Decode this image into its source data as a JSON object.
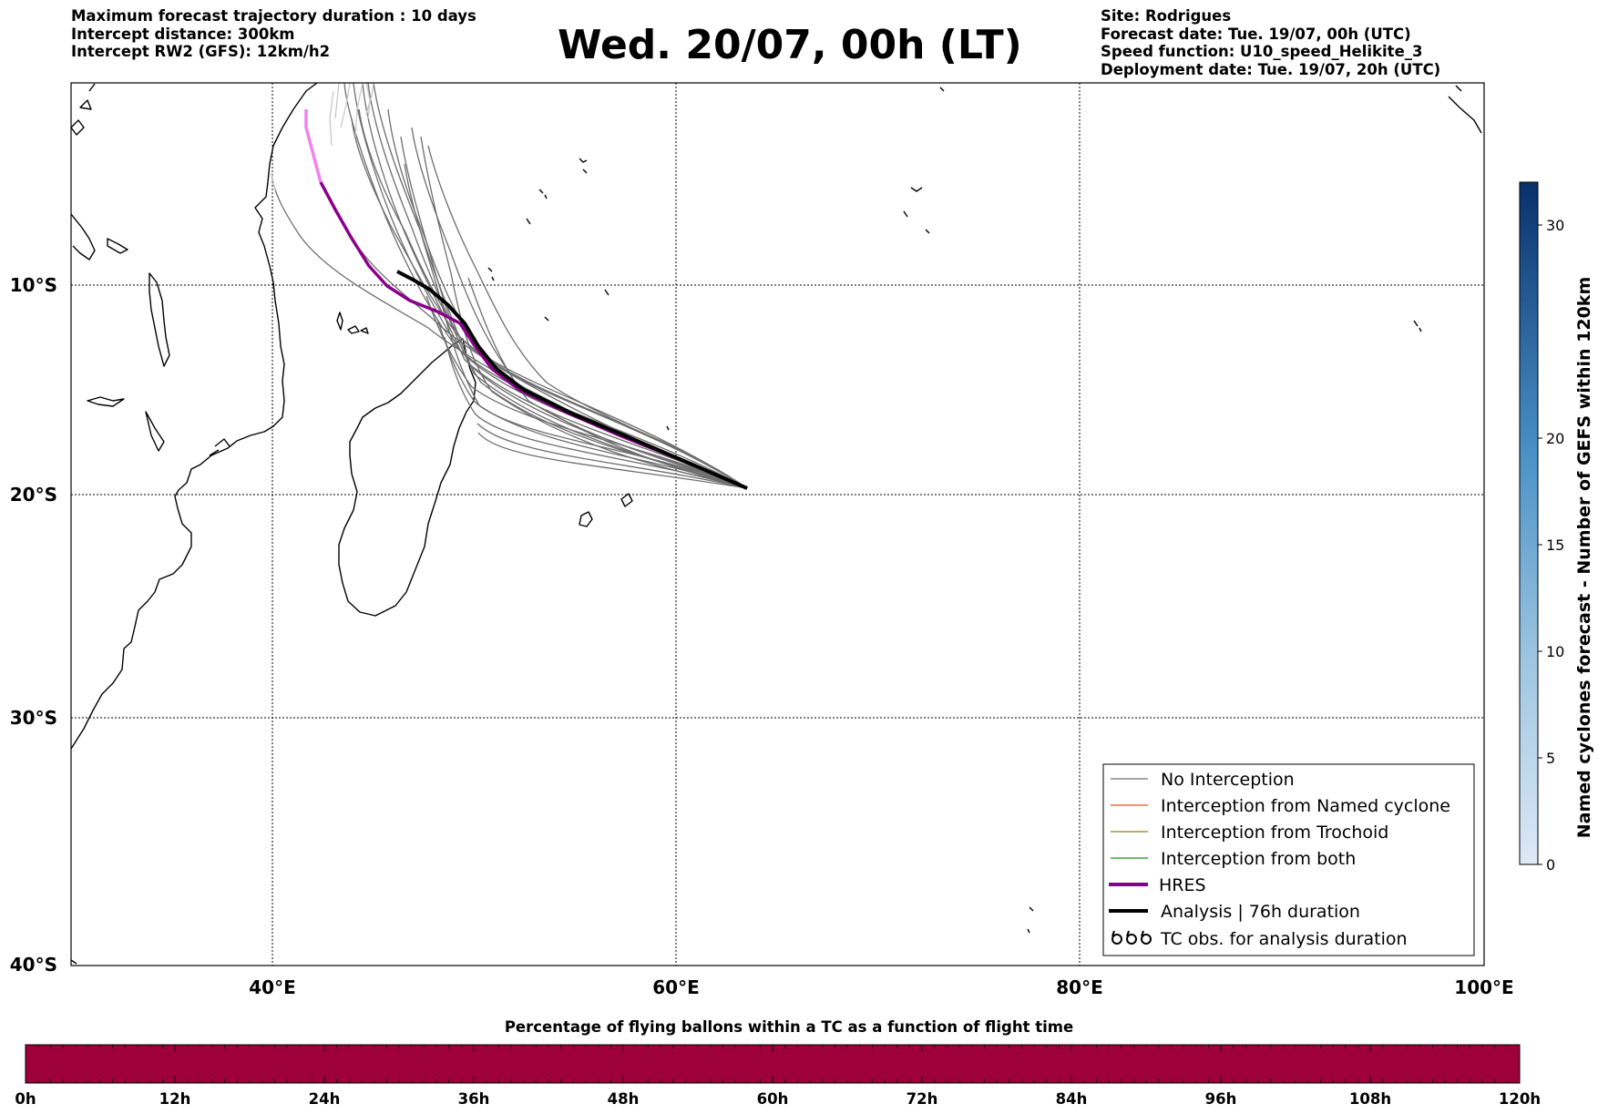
{
  "header_left": [
    "Maximum forecast trajectory duration : 10 days",
    "Intercept distance: 300km",
    "Intercept RW2 (GFS):  12km/h2"
  ],
  "title": "Wed. 20/07, 00h (LT)",
  "header_right": [
    "Site: Rodrigues",
    "Forecast date: Tue. 19/07, 00h (UTC)",
    "Speed function: U10_speed_Helikite_3",
    "Deployment date: Tue. 19/07, 20h (UTC)"
  ],
  "map": {
    "x_ticks": [
      "40°E",
      "60°E",
      "80°E",
      "100°E"
    ],
    "y_ticks": [
      "10°S",
      "20°S",
      "30°S",
      "40°S"
    ],
    "lon_range": [
      30,
      100
    ],
    "lat_range": [
      0,
      -40
    ]
  },
  "colorbar": {
    "label": "Named cyclones forecast - Number of GEFS within 120km",
    "ticks": [
      "0",
      "5",
      "10",
      "15",
      "20",
      "30"
    ],
    "range": [
      0,
      32
    ]
  },
  "legend": {
    "items": [
      {
        "label": "No Interception",
        "color": "#6e6e6e",
        "style": "thin"
      },
      {
        "label": "Interception from Named cyclone",
        "color": "#e8501a",
        "style": "thin"
      },
      {
        "label": "Interception from Trochoid",
        "color": "#8b7d16",
        "style": "thin"
      },
      {
        "label": "Interception from both",
        "color": "#169416",
        "style": "thin"
      },
      {
        "label": "HRES",
        "color": "#8b008b",
        "style": "thick"
      },
      {
        "label": "Analysis | 76h duration",
        "color": "#000000",
        "style": "thick"
      },
      {
        "label": "TC obs. for analysis duration",
        "color": "#000000",
        "style": "symbol"
      }
    ]
  },
  "flight_bar": {
    "title": "Percentage of flying ballons within a TC as a function of flight time",
    "ticks": [
      "0h",
      "12h",
      "24h",
      "36h",
      "48h",
      "60h",
      "72h",
      "84h",
      "96h",
      "108h",
      "120h"
    ],
    "color": "#9e003a"
  },
  "chart_data": {
    "type": "map-trajectories",
    "site": "Rodrigues",
    "start_point": {
      "lon": 63.4,
      "lat": -19.7
    },
    "hres": [
      [
        63.4,
        -19.7
      ],
      [
        56,
        -17
      ],
      [
        52,
        -14.5
      ],
      [
        49.5,
        -12
      ],
      [
        46,
        -10
      ],
      [
        44.5,
        -9
      ],
      [
        42.5,
        -5
      ],
      [
        41.7,
        -1.5
      ]
    ],
    "analysis": [
      [
        63.4,
        -19.7
      ],
      [
        56,
        -16.8
      ],
      [
        51.5,
        -14
      ],
      [
        49,
        -11.5
      ],
      [
        47.3,
        -10.2
      ],
      [
        46.2,
        -9.4
      ]
    ],
    "gefs_members": 30
  }
}
